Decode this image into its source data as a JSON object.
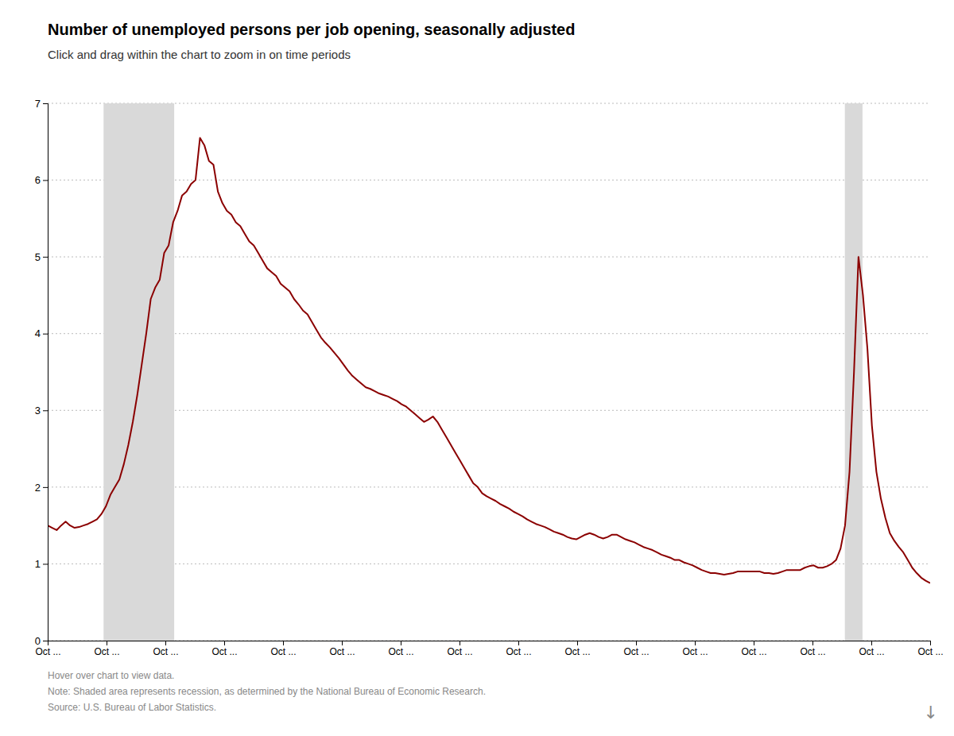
{
  "chart_data": {
    "type": "line",
    "title": "Number of unemployed persons per job opening, seasonally adjusted",
    "subtitle": "Click and drag within the chart to zoom in on time periods",
    "footer": [
      "Hover over chart to view data.",
      "Note: Shaded area represents recession, as determined by the National Bureau of Economic Research.",
      "Source: U.S. Bureau of Labor Statistics."
    ],
    "annotations": [
      "↓"
    ],
    "color": "#8B0000",
    "grid": "y",
    "xlim": [
      0,
      15
    ],
    "xticks": [
      {
        "value": 0,
        "label": "Oct ..."
      },
      {
        "value": 1,
        "label": "Oct ..."
      },
      {
        "value": 2,
        "label": "Oct ..."
      },
      {
        "value": 3,
        "label": "Oct ..."
      },
      {
        "value": 4,
        "label": "Oct ..."
      },
      {
        "value": 5,
        "label": "Oct ..."
      },
      {
        "value": 6,
        "label": "Oct ..."
      },
      {
        "value": 7,
        "label": "Oct ..."
      },
      {
        "value": 8,
        "label": "Oct ..."
      },
      {
        "value": 9,
        "label": "Oct ..."
      },
      {
        "value": 10,
        "label": "Oct ..."
      },
      {
        "value": 11,
        "label": "Oct ..."
      },
      {
        "value": 12,
        "label": "Oct ..."
      },
      {
        "value": 13,
        "label": "Oct ..."
      },
      {
        "value": 14,
        "label": "Oct ..."
      },
      {
        "value": 15,
        "label": "Oct ..."
      }
    ],
    "ylim": [
      0,
      7
    ],
    "yticks": [
      0,
      1,
      2,
      3,
      4,
      5,
      6,
      7
    ],
    "shaded_ranges": [
      [
        0.95,
        2.15
      ],
      [
        13.55,
        13.85
      ]
    ],
    "x": [
      0,
      0.0761,
      0.1523,
      0.2284,
      0.3046,
      0.3807,
      0.4569,
      0.533,
      0.6091,
      0.6853,
      0.7614,
      0.8376,
      0.9137,
      0.9898,
      1.066,
      1.1421,
      1.2183,
      1.2944,
      1.3706,
      1.4467,
      1.5228,
      1.599,
      1.6751,
      1.7513,
      1.8274,
      1.9036,
      1.9797,
      2.0558,
      2.132,
      2.2081,
      2.2843,
      2.3604,
      2.4365,
      2.5127,
      2.5888,
      2.665,
      2.7411,
      2.8173,
      2.8934,
      2.9695,
      3.0457,
      3.1218,
      3.198,
      3.2741,
      3.3503,
      3.4264,
      3.5025,
      3.5787,
      3.6548,
      3.731,
      3.8071,
      3.8832,
      3.9594,
      4.0355,
      4.1117,
      4.1878,
      4.264,
      4.3401,
      4.4162,
      4.4924,
      4.5685,
      4.6447,
      4.7208,
      4.797,
      4.8731,
      4.9492,
      5.0254,
      5.1015,
      5.1777,
      5.2538,
      5.3299,
      5.4061,
      5.4822,
      5.5584,
      5.6345,
      5.7107,
      5.7868,
      5.8629,
      5.9391,
      6.0152,
      6.0914,
      6.1675,
      6.2437,
      6.3198,
      6.3959,
      6.4721,
      6.5482,
      6.6244,
      6.7005,
      6.7766,
      6.8528,
      6.9289,
      7.0051,
      7.0812,
      7.1574,
      7.2335,
      7.3096,
      7.3858,
      7.4619,
      7.5381,
      7.6142,
      7.6904,
      7.7665,
      7.8426,
      7.9188,
      7.9949,
      8.0711,
      8.1472,
      8.2234,
      8.2995,
      8.3756,
      8.4518,
      8.5279,
      8.6041,
      8.6802,
      8.7563,
      8.8325,
      8.9086,
      8.9848,
      9.0609,
      9.1371,
      9.2132,
      9.2893,
      9.3655,
      9.4416,
      9.5178,
      9.5939,
      9.6701,
      9.7462,
      9.8223,
      9.8985,
      9.9746,
      10.0508,
      10.1269,
      10.203,
      10.2792,
      10.3553,
      10.4315,
      10.5076,
      10.5838,
      10.6599,
      10.736,
      10.8122,
      10.8883,
      10.9645,
      11.0406,
      11.1168,
      11.1929,
      11.269,
      11.3452,
      11.4213,
      11.4975,
      11.5736,
      11.6497,
      11.7259,
      11.802,
      11.8782,
      11.9543,
      12.0305,
      12.1066,
      12.1827,
      12.2589,
      12.335,
      12.4112,
      12.4873,
      12.5635,
      12.6396,
      12.7157,
      12.7919,
      12.868,
      12.9442,
      13.0203,
      13.0964,
      13.1726,
      13.2487,
      13.3249,
      13.401,
      13.4772,
      13.5533,
      13.6294,
      13.7056,
      13.7817,
      13.8579,
      13.934,
      14.0102,
      14.0863,
      14.1624,
      14.2386,
      14.3147,
      14.3909,
      14.467,
      14.5431,
      14.6193,
      14.6954,
      14.7716,
      14.8477,
      14.9239,
      15
    ],
    "values": [
      1.5,
      1.47,
      1.44,
      1.5,
      1.55,
      1.5,
      1.47,
      1.48,
      1.5,
      1.52,
      1.55,
      1.58,
      1.65,
      1.75,
      1.9,
      2.0,
      2.1,
      2.3,
      2.55,
      2.85,
      3.2,
      3.6,
      4.0,
      4.45,
      4.6,
      4.7,
      5.05,
      5.15,
      5.45,
      5.6,
      5.8,
      5.85,
      5.95,
      6.0,
      6.55,
      6.45,
      6.25,
      6.2,
      5.85,
      5.7,
      5.6,
      5.55,
      5.45,
      5.4,
      5.3,
      5.2,
      5.15,
      5.05,
      4.95,
      4.85,
      4.8,
      4.75,
      4.65,
      4.6,
      4.55,
      4.45,
      4.38,
      4.3,
      4.25,
      4.15,
      4.05,
      3.95,
      3.88,
      3.82,
      3.75,
      3.68,
      3.6,
      3.52,
      3.45,
      3.4,
      3.35,
      3.3,
      3.28,
      3.25,
      3.22,
      3.2,
      3.18,
      3.15,
      3.12,
      3.08,
      3.05,
      3.0,
      2.95,
      2.9,
      2.85,
      2.88,
      2.92,
      2.85,
      2.75,
      2.65,
      2.55,
      2.45,
      2.35,
      2.25,
      2.15,
      2.05,
      2.0,
      1.92,
      1.88,
      1.85,
      1.82,
      1.78,
      1.75,
      1.72,
      1.68,
      1.65,
      1.62,
      1.58,
      1.55,
      1.52,
      1.5,
      1.48,
      1.45,
      1.42,
      1.4,
      1.38,
      1.35,
      1.33,
      1.32,
      1.35,
      1.38,
      1.4,
      1.38,
      1.35,
      1.33,
      1.35,
      1.38,
      1.38,
      1.35,
      1.32,
      1.3,
      1.28,
      1.25,
      1.22,
      1.2,
      1.18,
      1.15,
      1.12,
      1.1,
      1.08,
      1.05,
      1.05,
      1.02,
      1.0,
      0.98,
      0.95,
      0.92,
      0.9,
      0.88,
      0.88,
      0.87,
      0.86,
      0.87,
      0.88,
      0.9,
      0.9,
      0.9,
      0.9,
      0.9,
      0.9,
      0.88,
      0.88,
      0.87,
      0.88,
      0.9,
      0.92,
      0.92,
      0.92,
      0.92,
      0.95,
      0.97,
      0.98,
      0.95,
      0.95,
      0.97,
      1.0,
      1.05,
      1.2,
      1.5,
      2.2,
      3.5,
      5.0,
      4.5,
      3.8,
      2.8,
      2.2,
      1.85,
      1.6,
      1.4,
      1.3,
      1.22,
      1.15,
      1.05,
      0.95,
      0.88,
      0.82,
      0.78,
      0.75
    ]
  }
}
